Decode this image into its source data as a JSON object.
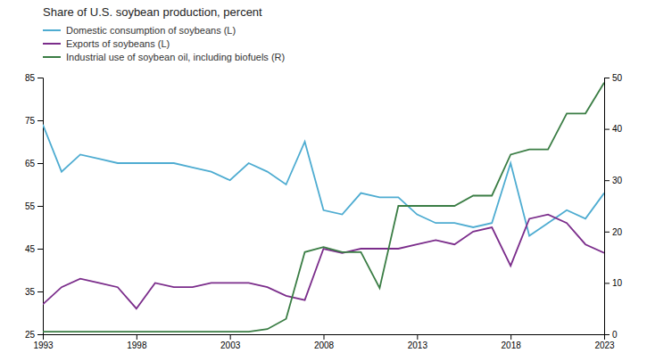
{
  "chart_data": {
    "type": "line",
    "title": "Share of U.S. soybean production, percent",
    "x": [
      1993,
      1994,
      1995,
      1996,
      1997,
      1998,
      1999,
      2000,
      2001,
      2002,
      2003,
      2004,
      2005,
      2006,
      2007,
      2008,
      2009,
      2010,
      2011,
      2012,
      2013,
      2014,
      2015,
      2016,
      2017,
      2018,
      2019,
      2020,
      2021,
      2022,
      2023
    ],
    "xlim": [
      1993,
      2023
    ],
    "xticks": [
      1993,
      1998,
      2003,
      2008,
      2013,
      2018,
      2023
    ],
    "ylim": [
      25,
      85
    ],
    "yticks": [
      25,
      35,
      45,
      55,
      65,
      75,
      85
    ],
    "y2lim": [
      0,
      50
    ],
    "y2ticks": [
      0,
      10,
      20,
      30,
      40,
      50
    ],
    "grid": false,
    "legend": "upper-left",
    "series": [
      {
        "name": "Domestic consumption of soybeans (L)",
        "color": "#4EACD1",
        "values": [
          74,
          63,
          67,
          66,
          65,
          65,
          65,
          65,
          64,
          63,
          61,
          65,
          63,
          60,
          70,
          54,
          53,
          58,
          57,
          57,
          53,
          51,
          51,
          50,
          51,
          65,
          48,
          51,
          54,
          52,
          58
        ]
      },
      {
        "name": "Exports of soybeans (L)",
        "color": "#7B2D8B",
        "values": [
          32,
          36,
          38,
          37,
          36,
          31,
          37,
          36,
          36,
          37,
          37,
          37,
          36,
          34,
          33,
          45,
          44,
          45,
          45,
          45,
          46,
          47,
          46,
          49,
          50,
          41,
          52,
          53,
          51,
          46,
          44
        ]
      },
      {
        "name": "Industrial use of soybean oil, including biofuels (R)",
        "color": "#3A7D44",
        "axis": "y2",
        "values": [
          0.5,
          0.5,
          0.5,
          0.5,
          0.5,
          0.5,
          0.5,
          0.5,
          0.5,
          0.5,
          0.5,
          0.5,
          1,
          3,
          16,
          17,
          16,
          16,
          9,
          25,
          25,
          25,
          25,
          27,
          27,
          35,
          36,
          36,
          43,
          43,
          49
        ]
      }
    ]
  }
}
